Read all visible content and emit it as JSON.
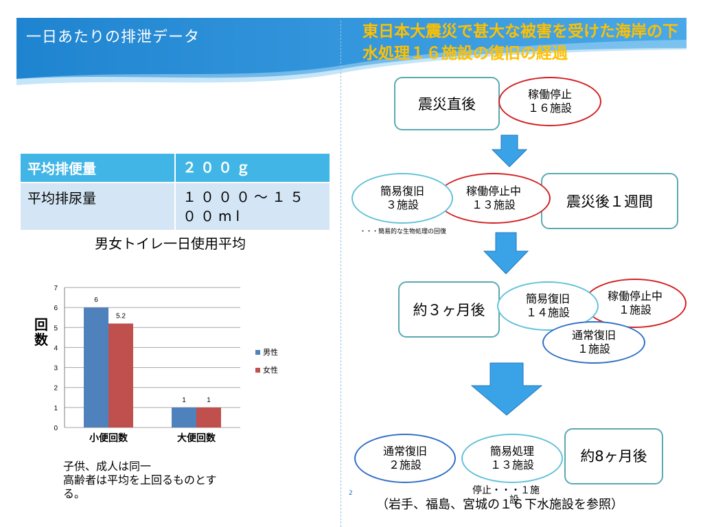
{
  "left": {
    "title": "一日あたりの排泄データ",
    "table": {
      "rows": [
        {
          "label": "平均排便量",
          "value": "２００ｇ"
        },
        {
          "label": "平均排尿量",
          "value": "１０００～１５００ml"
        }
      ]
    },
    "note_lines": [
      "子供、成人は同一",
      "高齢者は平均を上回るものとす",
      "る。"
    ]
  },
  "chart_data": {
    "type": "bar",
    "title": "男女トイレ一日使用平均",
    "ylabel": "回数",
    "categories": [
      "小便回数",
      "大便回数"
    ],
    "series": [
      {
        "name": "男性",
        "values": [
          6,
          1
        ],
        "color": "#4f81bd"
      },
      {
        "name": "女性",
        "values": [
          5.2,
          1
        ],
        "color": "#c0504d"
      }
    ],
    "ylim": [
      0,
      7
    ],
    "yticks": [
      0,
      1,
      2,
      3,
      4,
      5,
      6,
      7
    ],
    "grid": true,
    "legend": "right"
  },
  "right": {
    "title": "東日本大震災で甚大な被害を受けた海岸の下水処理１６施設の復旧の経過",
    "stage1": {
      "label": "震災直後",
      "stopped": "稼働停止\n１６施設"
    },
    "stage2": {
      "label": "震災後１週間",
      "simple": "簡易復旧\n３施設",
      "stopped": "稼働停止中\n１３施設",
      "note": "・・・簡易的な生物処理の回復"
    },
    "stage3": {
      "label": "約３ヶ月後",
      "simple": "簡易復旧\n１４施設",
      "stopped": "稼働停止中\n１施設",
      "normal": "通常復旧\n１施設"
    },
    "stage4": {
      "label": "約8ヶ月後",
      "normal": "通常復旧\n２施設",
      "simple": "簡易処理\n１３施設",
      "stop_note": "停止・・・１施",
      "stop_note_tail": "設"
    },
    "reference": "（岩手、福島、宮城の１６下水施設を参照）"
  },
  "page_number": "2",
  "colors": {
    "header": "#2a8fd6",
    "accent_title": "#ffc000",
    "arrow": "#3aa3e8"
  }
}
